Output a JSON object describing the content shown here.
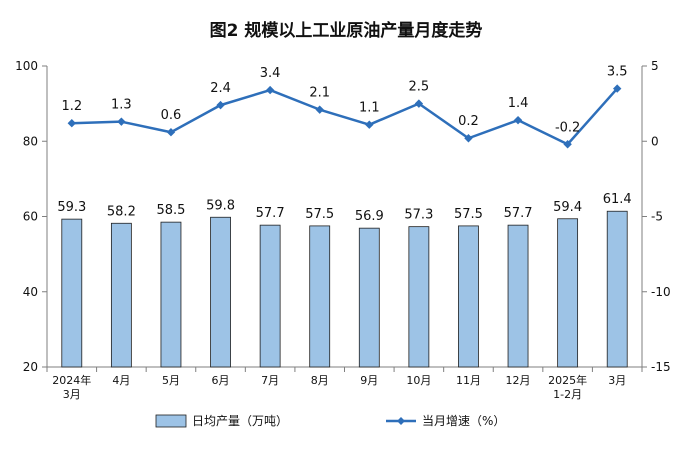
{
  "chart_data": {
    "type": "bar+line",
    "title": "图2  规模以上工业原油产量月度走势",
    "categories": [
      [
        "2024年",
        "3月"
      ],
      [
        "4月"
      ],
      [
        "5月"
      ],
      [
        "6月"
      ],
      [
        "7月"
      ],
      [
        "8月"
      ],
      [
        "9月"
      ],
      [
        "10月"
      ],
      [
        "11月"
      ],
      [
        "12月"
      ],
      [
        "2025年",
        "1-2月"
      ],
      [
        "3月"
      ]
    ],
    "series": [
      {
        "name": "日均产量（万吨）",
        "kind": "bar",
        "axis": "left",
        "values": [
          59.3,
          58.2,
          58.5,
          59.8,
          57.7,
          57.5,
          56.9,
          57.3,
          57.5,
          57.7,
          59.4,
          61.4
        ],
        "labels": [
          "59.3",
          "58.2",
          "58.5",
          "59.8",
          "57.7",
          "57.5",
          "56.9",
          "57.3",
          "57.5",
          "57.7",
          "59.4",
          "61.4"
        ],
        "color": "#9dc3e6",
        "edge_color": "#1f1f1f"
      },
      {
        "name": "当月增速（%）",
        "kind": "line",
        "axis": "right",
        "values": [
          1.2,
          1.3,
          0.6,
          2.4,
          3.4,
          2.1,
          1.1,
          2.5,
          0.2,
          1.4,
          -0.2,
          3.5
        ],
        "labels": [
          "1.2",
          "1.3",
          "0.6",
          "2.4",
          "3.4",
          "2.1",
          "1.1",
          "2.5",
          "0.2",
          "1.4",
          "-0.2",
          "3.5"
        ],
        "color": "#2e6fba"
      }
    ],
    "y_left": {
      "min": 20,
      "max": 100,
      "ticks": [
        20,
        40,
        60,
        80,
        100
      ]
    },
    "y_right": {
      "min": -15,
      "max": 5,
      "ticks": [
        -15,
        -10,
        -5,
        0,
        5
      ]
    },
    "legend": [
      {
        "label": "日均产量（万吨）",
        "kind": "bar"
      },
      {
        "label": "当月增速（%）",
        "kind": "line"
      }
    ],
    "legend_position": "bottom",
    "grid": false
  }
}
